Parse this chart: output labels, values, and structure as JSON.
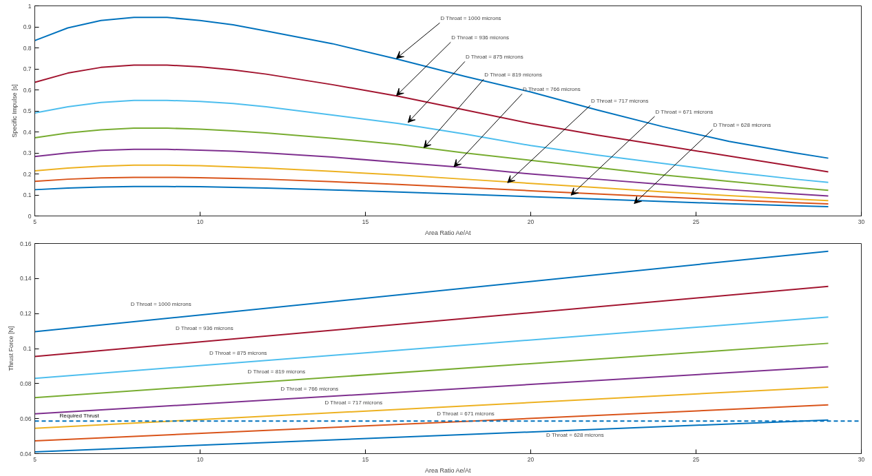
{
  "chart_data": [
    {
      "type": "line",
      "xlabel": "Area Ratio Ae/At",
      "ylabel": "Specific Impulse [s]",
      "x": [
        5,
        6,
        7,
        8,
        9,
        10,
        11,
        12,
        14,
        16,
        18,
        20,
        22,
        24,
        26,
        28,
        29
      ],
      "xlim": [
        5,
        30
      ],
      "xticks": [
        5,
        10,
        15,
        20,
        25,
        30
      ],
      "ylim": [
        0,
        1
      ],
      "yticks": [
        0,
        0.1,
        0.2,
        0.3,
        0.4,
        0.5,
        0.6,
        0.7,
        0.8,
        0.9,
        1
      ],
      "grid": false,
      "marker": "none",
      "line_style": "solid",
      "series": [
        {
          "color": "#0072bd",
          "values": [
            0.835,
            0.895,
            0.93,
            0.945,
            0.945,
            0.93,
            0.91,
            0.88,
            0.82,
            0.745,
            0.665,
            0.59,
            0.505,
            0.425,
            0.355,
            0.3,
            0.275
          ]
        },
        {
          "color": "#a2142f",
          "values": [
            0.636,
            0.68,
            0.707,
            0.718,
            0.718,
            0.71,
            0.695,
            0.675,
            0.625,
            0.57,
            0.505,
            0.44,
            0.385,
            0.335,
            0.285,
            0.235,
            0.21
          ]
        },
        {
          "color": "#4dbeee",
          "values": [
            0.49,
            0.52,
            0.54,
            0.55,
            0.55,
            0.545,
            0.535,
            0.52,
            0.48,
            0.44,
            0.39,
            0.335,
            0.29,
            0.25,
            0.21,
            0.175,
            0.16
          ]
        },
        {
          "color": "#77ac30",
          "values": [
            0.372,
            0.395,
            0.41,
            0.418,
            0.418,
            0.413,
            0.405,
            0.395,
            0.37,
            0.34,
            0.3,
            0.265,
            0.23,
            0.195,
            0.165,
            0.135,
            0.122
          ]
        },
        {
          "color": "#7e2f8e",
          "values": [
            0.283,
            0.3,
            0.312,
            0.317,
            0.317,
            0.313,
            0.308,
            0.3,
            0.28,
            0.255,
            0.23,
            0.2,
            0.175,
            0.15,
            0.125,
            0.105,
            0.095
          ]
        },
        {
          "color": "#edb120",
          "values": [
            0.215,
            0.228,
            0.237,
            0.242,
            0.242,
            0.239,
            0.234,
            0.228,
            0.212,
            0.195,
            0.175,
            0.155,
            0.135,
            0.115,
            0.097,
            0.08,
            0.073
          ]
        },
        {
          "color": "#d95319",
          "values": [
            0.165,
            0.175,
            0.181,
            0.184,
            0.184,
            0.182,
            0.179,
            0.175,
            0.163,
            0.15,
            0.135,
            0.12,
            0.105,
            0.09,
            0.076,
            0.063,
            0.057
          ]
        },
        {
          "color": "#0072bd",
          "values": [
            0.125,
            0.133,
            0.138,
            0.14,
            0.14,
            0.139,
            0.136,
            0.133,
            0.124,
            0.114,
            0.103,
            0.092,
            0.08,
            0.069,
            0.058,
            0.048,
            0.044
          ]
        }
      ],
      "annotations": [
        {
          "text": "D Throat = 1000 microns",
          "x": 15.94,
          "y": 0.75
        },
        {
          "text": "D Throat = 936 microns",
          "x": 15.94,
          "y": 0.573
        },
        {
          "text": "D Throat = 875 microns",
          "x": 16.29,
          "y": 0.445
        },
        {
          "text": "D Throat = 819 microns",
          "x": 16.77,
          "y": 0.325
        },
        {
          "text": "D Throat = 766 microns",
          "x": 17.68,
          "y": 0.234
        },
        {
          "text": "D Throat = 717 microns",
          "x": 19.3,
          "y": 0.158
        },
        {
          "text": "D Throat = 671 microns",
          "x": 21.22,
          "y": 0.099
        },
        {
          "text": "D Throat = 628 microns",
          "x": 23.13,
          "y": 0.059
        }
      ]
    },
    {
      "type": "line",
      "xlabel": "Area Ratio Ae/At",
      "ylabel": "Thrust Force [N]",
      "x": [
        5,
        29
      ],
      "xlim": [
        5,
        30
      ],
      "xticks": [
        5,
        10,
        15,
        20,
        25,
        30
      ],
      "ylim": [
        0.04,
        0.16
      ],
      "yticks": [
        0.04,
        0.06,
        0.08,
        0.1,
        0.12,
        0.14,
        0.16
      ],
      "grid": false,
      "marker": "none",
      "line_style": "solid",
      "series": [
        {
          "color": "#0072bd",
          "values": [
            0.1096,
            0.1556
          ]
        },
        {
          "color": "#a2142f",
          "values": [
            0.0955,
            0.1355
          ]
        },
        {
          "color": "#4dbeee",
          "values": [
            0.083,
            0.118
          ]
        },
        {
          "color": "#77ac30",
          "values": [
            0.072,
            0.103
          ]
        },
        {
          "color": "#7e2f8e",
          "values": [
            0.0627,
            0.0896
          ]
        },
        {
          "color": "#edb120",
          "values": [
            0.0545,
            0.078
          ]
        },
        {
          "color": "#d95319",
          "values": [
            0.0473,
            0.0678
          ]
        },
        {
          "color": "#0072bd",
          "values": [
            0.041,
            0.0592
          ]
        }
      ],
      "ref_lines": [
        {
          "axis": "y",
          "value": 0.0586,
          "label": "Required Thrust",
          "color": "#0072bd",
          "line_style": "dashed"
        }
      ],
      "annotations": [
        "D Throat = 1000 microns",
        "D Throat = 936 microns",
        "D Throat = 875 microns",
        "D Throat = 819 microns",
        "D Throat = 766 microns",
        "D Throat = 717 microns",
        "D Throat = 671 microns",
        "D Throat = 628 microns"
      ]
    }
  ]
}
